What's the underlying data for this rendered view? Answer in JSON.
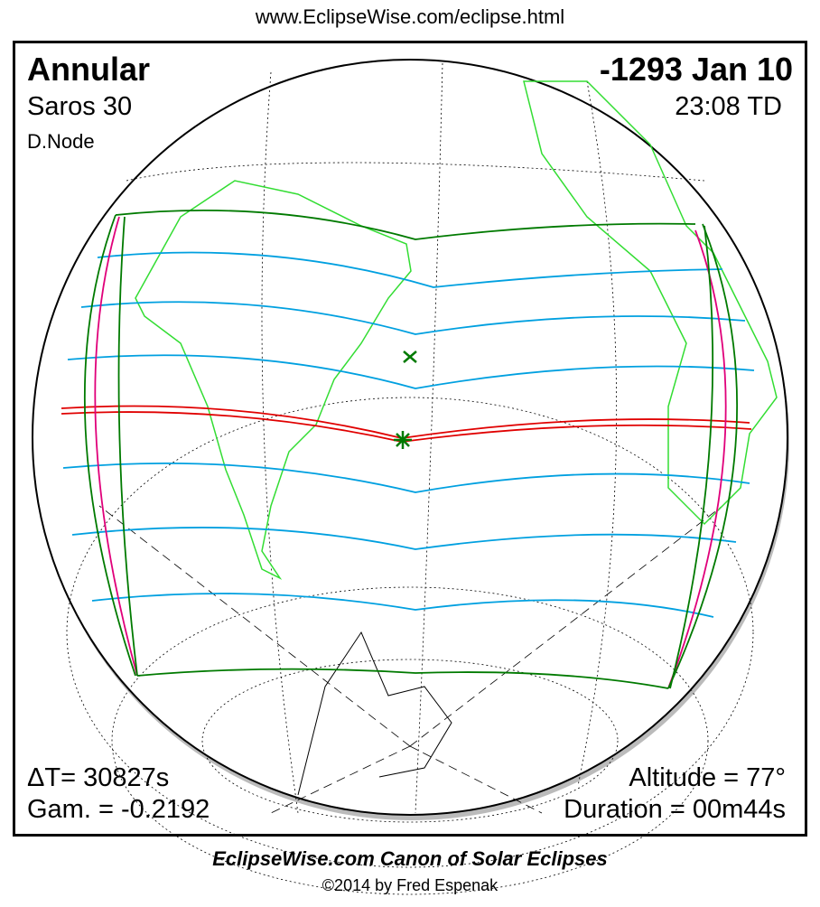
{
  "url": "www.EclipseWise.com/eclipse.html",
  "eclipse": {
    "type": "Annular",
    "saros": "Saros  30",
    "node": "D.Node",
    "date": "-1293 Jan 10",
    "time": "23:08 TD",
    "delta_t": "ΔT=  30827s",
    "gamma": "Gam. = -0.2192",
    "altitude": "Altitude = 77°",
    "duration": "Duration = 00m44s"
  },
  "footer": {
    "caption": "EclipseWise.com Canon of Solar Eclipses",
    "copyright": "©2014 by Fred Espenak"
  },
  "colors": {
    "central_path": "#e00000",
    "penumbral_limits": "#007a00",
    "magnitude_lines": "#00a0e0",
    "rise_set_curves": "#e0007a",
    "land": "#33dd33"
  }
}
